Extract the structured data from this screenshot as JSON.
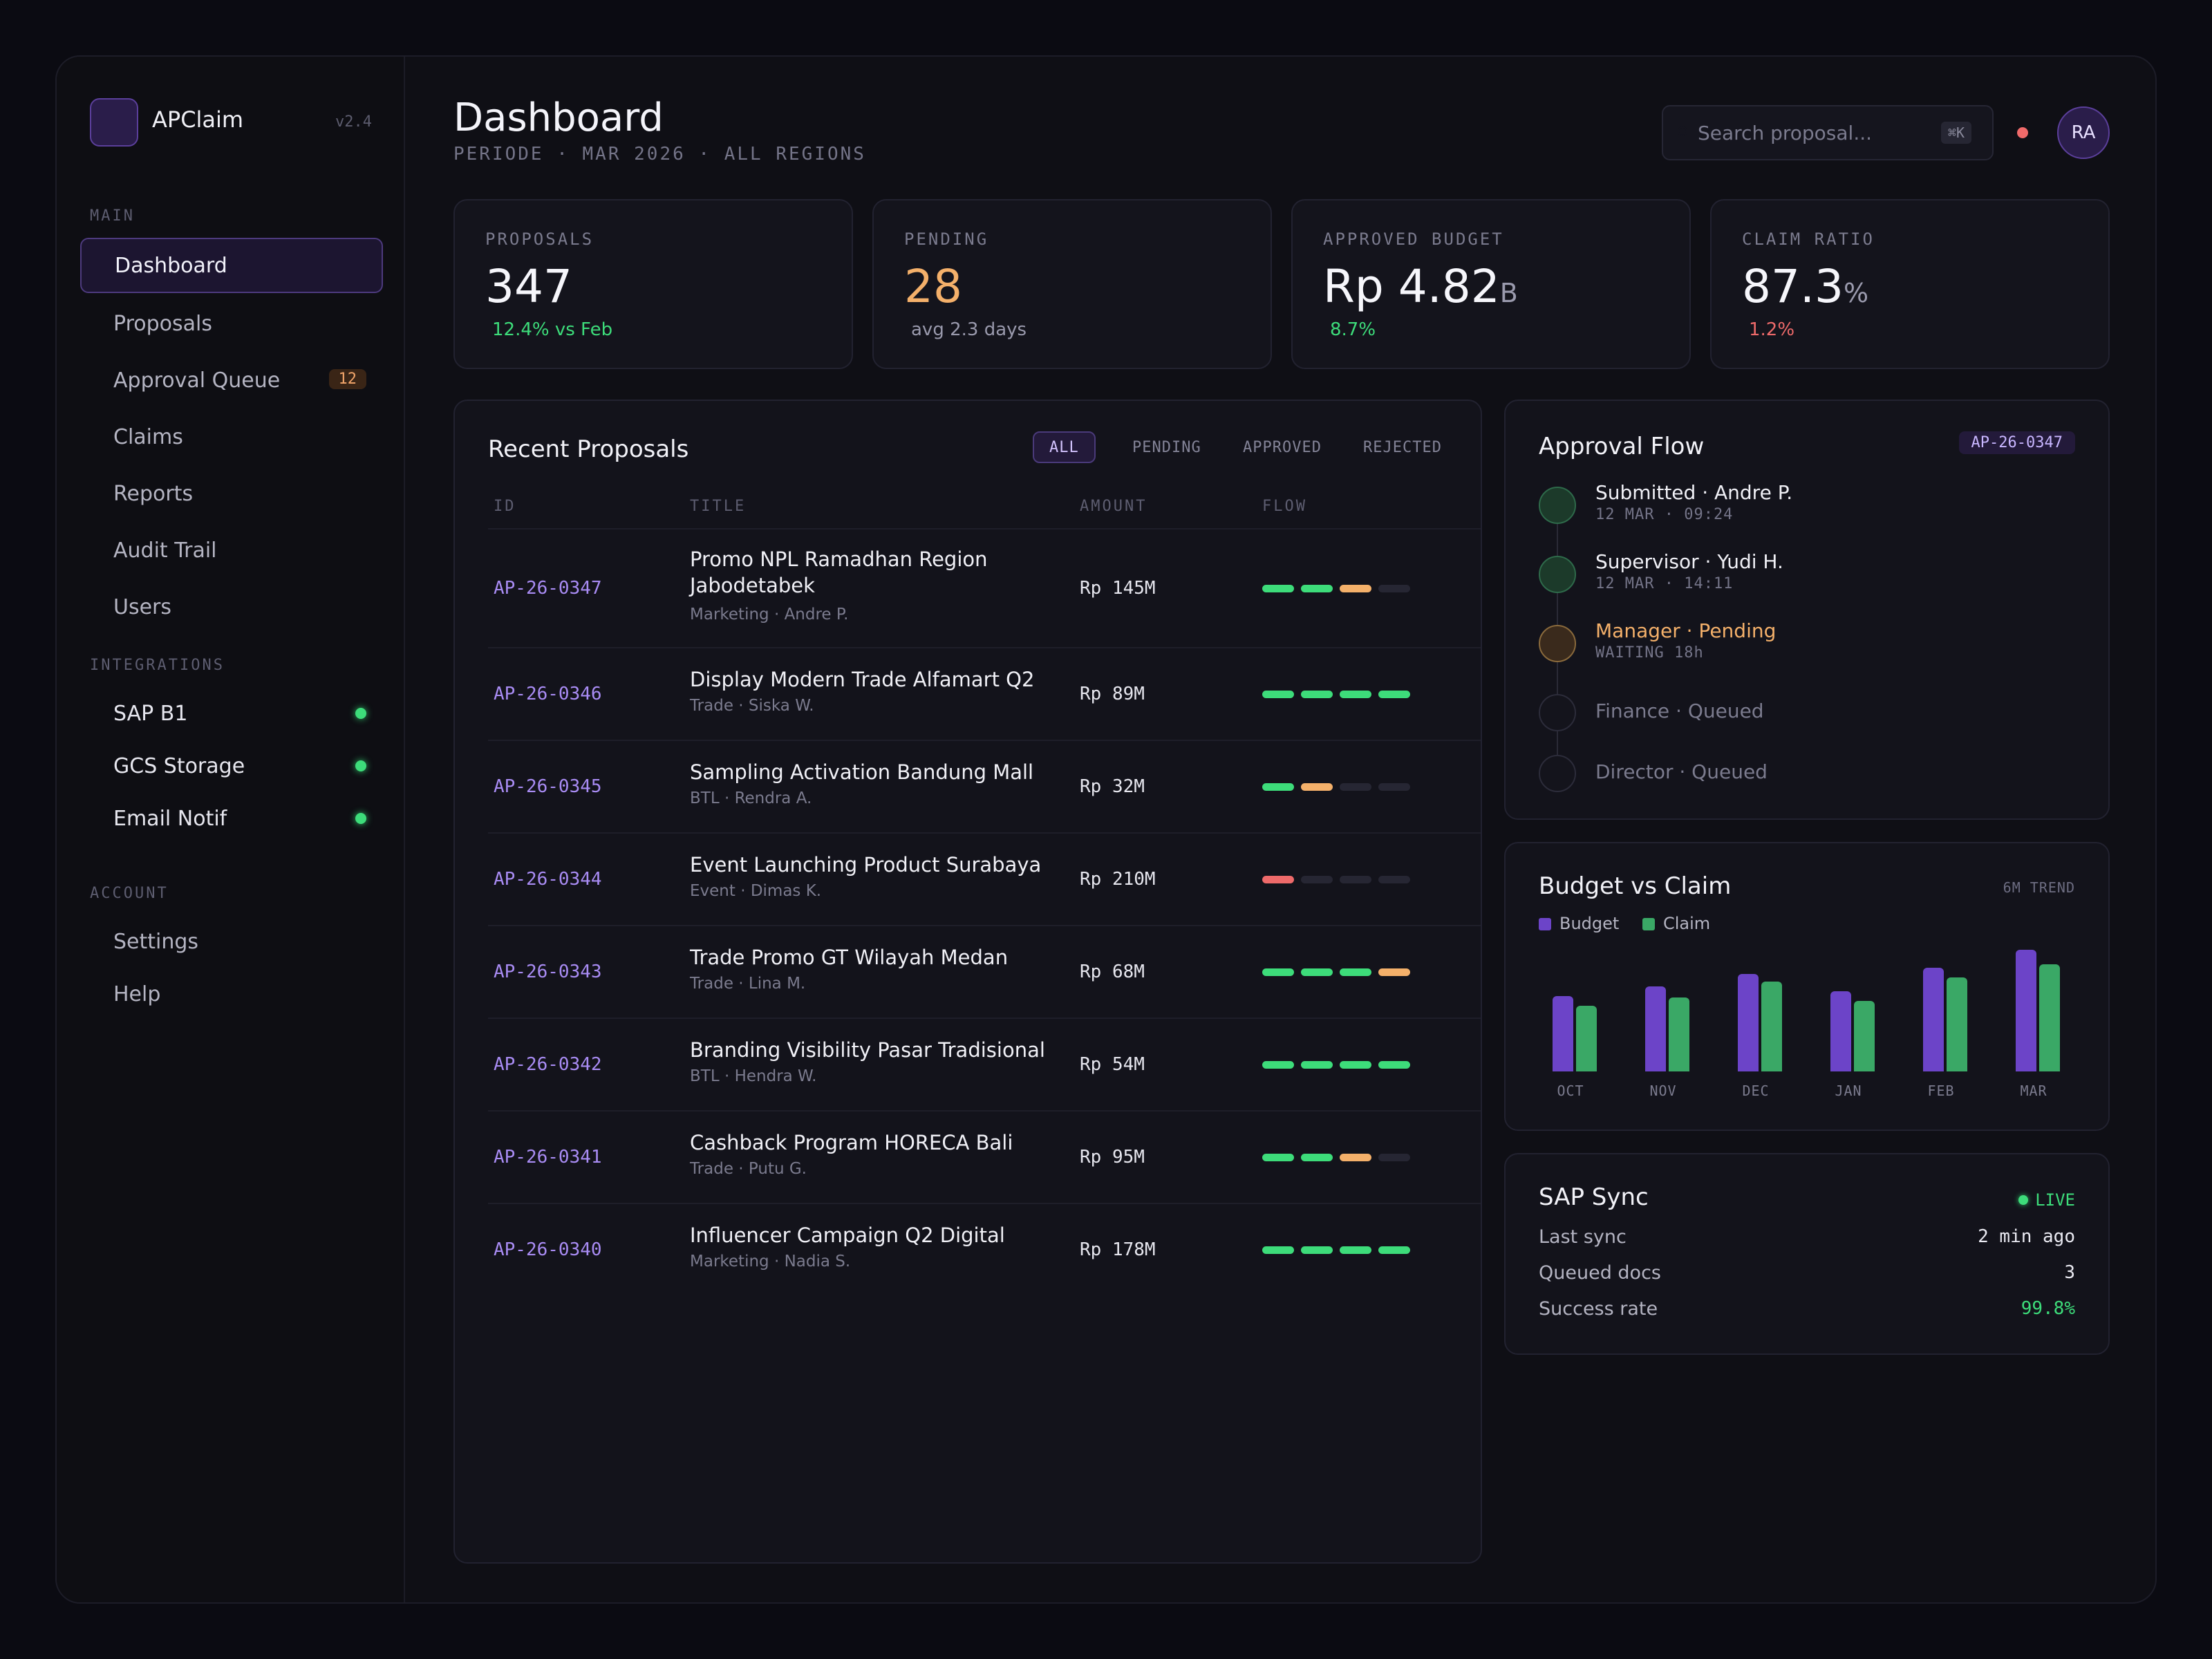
{
  "app": {
    "name": "APClaim",
    "version": "v2.4"
  },
  "sidebar": {
    "sections": {
      "main": "MAIN",
      "integrations": "INTEGRATIONS",
      "account": "ACCOUNT"
    },
    "main_items": [
      {
        "label": "Dashboard",
        "active": true
      },
      {
        "label": "Proposals"
      },
      {
        "label": "Approval Queue",
        "badge": "12"
      },
      {
        "label": "Claims"
      },
      {
        "label": "Reports"
      },
      {
        "label": "Audit Trail"
      },
      {
        "label": "Users"
      }
    ],
    "integrations": [
      {
        "label": "SAP B1",
        "status": "online"
      },
      {
        "label": "GCS Storage",
        "status": "online"
      },
      {
        "label": "Email Notif",
        "status": "online"
      }
    ],
    "account_items": [
      {
        "label": "Settings"
      },
      {
        "label": "Help"
      }
    ]
  },
  "header": {
    "title": "Dashboard",
    "subtitle": "PERIODE · MAR 2026 · ALL REGIONS",
    "search_placeholder": "Search proposal...",
    "search_shortcut": "⌘K",
    "avatar_initials": "RA"
  },
  "kpis": [
    {
      "label": "PROPOSALS",
      "value": "347",
      "unit": "",
      "delta": "12.4% vs Feb",
      "delta_color": "#3ddc7a"
    },
    {
      "label": "PENDING",
      "value": "28",
      "unit": "",
      "delta": "avg 2.3 days",
      "delta_color": "#9a9aad",
      "value_color": "#f4b06a"
    },
    {
      "label": "APPROVED BUDGET",
      "value": "Rp 4.82",
      "unit": "B",
      "delta": "8.7%",
      "delta_color": "#3ddc7a"
    },
    {
      "label": "CLAIM RATIO",
      "value": "87.3",
      "unit": "%",
      "delta": "1.2%",
      "delta_color": "#ee6a6a"
    }
  ],
  "proposals": {
    "title": "Recent Proposals",
    "filters": [
      "ALL",
      "PENDING",
      "APPROVED",
      "REJECTED"
    ],
    "active_filter": "ALL",
    "columns": [
      "ID",
      "TITLE",
      "AMOUNT",
      "FLOW"
    ],
    "rows": [
      {
        "id": "AP-26-0347",
        "title": "Promo NPL Ramadhan Region Jabodetabek",
        "sub": "Marketing · Andre P.",
        "amount": "Rp 145M",
        "flow": [
          "g",
          "g",
          "o",
          "e"
        ]
      },
      {
        "id": "AP-26-0346",
        "title": "Display Modern Trade Alfamart Q2",
        "sub": "Trade · Siska W.",
        "amount": "Rp 89M",
        "flow": [
          "g",
          "g",
          "g",
          "g"
        ]
      },
      {
        "id": "AP-26-0345",
        "title": "Sampling Activation Bandung Mall",
        "sub": "BTL · Rendra A.",
        "amount": "Rp 32M",
        "flow": [
          "g",
          "o",
          "e",
          "e"
        ]
      },
      {
        "id": "AP-26-0344",
        "title": "Event Launching Product Surabaya",
        "sub": "Event · Dimas K.",
        "amount": "Rp 210M",
        "flow": [
          "r",
          "e",
          "e",
          "e"
        ]
      },
      {
        "id": "AP-26-0343",
        "title": "Trade Promo GT Wilayah Medan",
        "sub": "Trade · Lina M.",
        "amount": "Rp 68M",
        "flow": [
          "g",
          "g",
          "g",
          "o"
        ]
      },
      {
        "id": "AP-26-0342",
        "title": "Branding Visibility Pasar Tradisional",
        "sub": "BTL · Hendra W.",
        "amount": "Rp 54M",
        "flow": [
          "g",
          "g",
          "g",
          "g"
        ]
      },
      {
        "id": "AP-26-0341",
        "title": "Cashback Program HORECA Bali",
        "sub": "Trade · Putu G.",
        "amount": "Rp 95M",
        "flow": [
          "g",
          "g",
          "o",
          "e"
        ]
      },
      {
        "id": "AP-26-0340",
        "title": "Influencer Campaign Q2 Digital",
        "sub": "Marketing · Nadia S.",
        "amount": "Rp 178M",
        "flow": [
          "g",
          "g",
          "g",
          "g"
        ]
      }
    ]
  },
  "approval_flow": {
    "title": "Approval Flow",
    "proposal_id": "AP-26-0347",
    "steps": [
      {
        "name": "Submitted · Andre P.",
        "time": "12 MAR · 09:24",
        "state": "done"
      },
      {
        "name": "Supervisor · Yudi H.",
        "time": "12 MAR · 14:11",
        "state": "done"
      },
      {
        "name": "Manager · Pending",
        "time": "WAITING 18h",
        "state": "pending"
      },
      {
        "name": "Finance · Queued",
        "time": "",
        "state": "queued"
      },
      {
        "name": "Director · Queued",
        "time": "",
        "state": "queued"
      }
    ]
  },
  "budget_chart": {
    "title": "Budget vs Claim",
    "tag": "6M TREND",
    "legend": [
      "Budget",
      "Claim"
    ]
  },
  "chart_data": {
    "type": "bar",
    "categories": [
      "OCT",
      "NOV",
      "DEC",
      "JAN",
      "FEB",
      "MAR"
    ],
    "series": [
      {
        "name": "Budget",
        "values": [
          62,
          70,
          80,
          66,
          85,
          100
        ],
        "color": "#6c44c8"
      },
      {
        "name": "Claim",
        "values": [
          54,
          61,
          74,
          58,
          77,
          88
        ],
        "color": "#3aa866"
      }
    ],
    "ylim": [
      0,
      100
    ]
  },
  "sap_sync": {
    "title": "SAP Sync",
    "status": "LIVE",
    "rows": [
      {
        "key": "Last sync",
        "value": "2 min ago"
      },
      {
        "key": "Queued docs",
        "value": "3"
      },
      {
        "key": "Success rate",
        "value": "99.8%",
        "color": "#3ddc7a"
      }
    ]
  },
  "colors": {
    "accent": "#6c44c8",
    "success": "#3ddc7a",
    "warning": "#f4b06a",
    "danger": "#ee6a6a"
  }
}
